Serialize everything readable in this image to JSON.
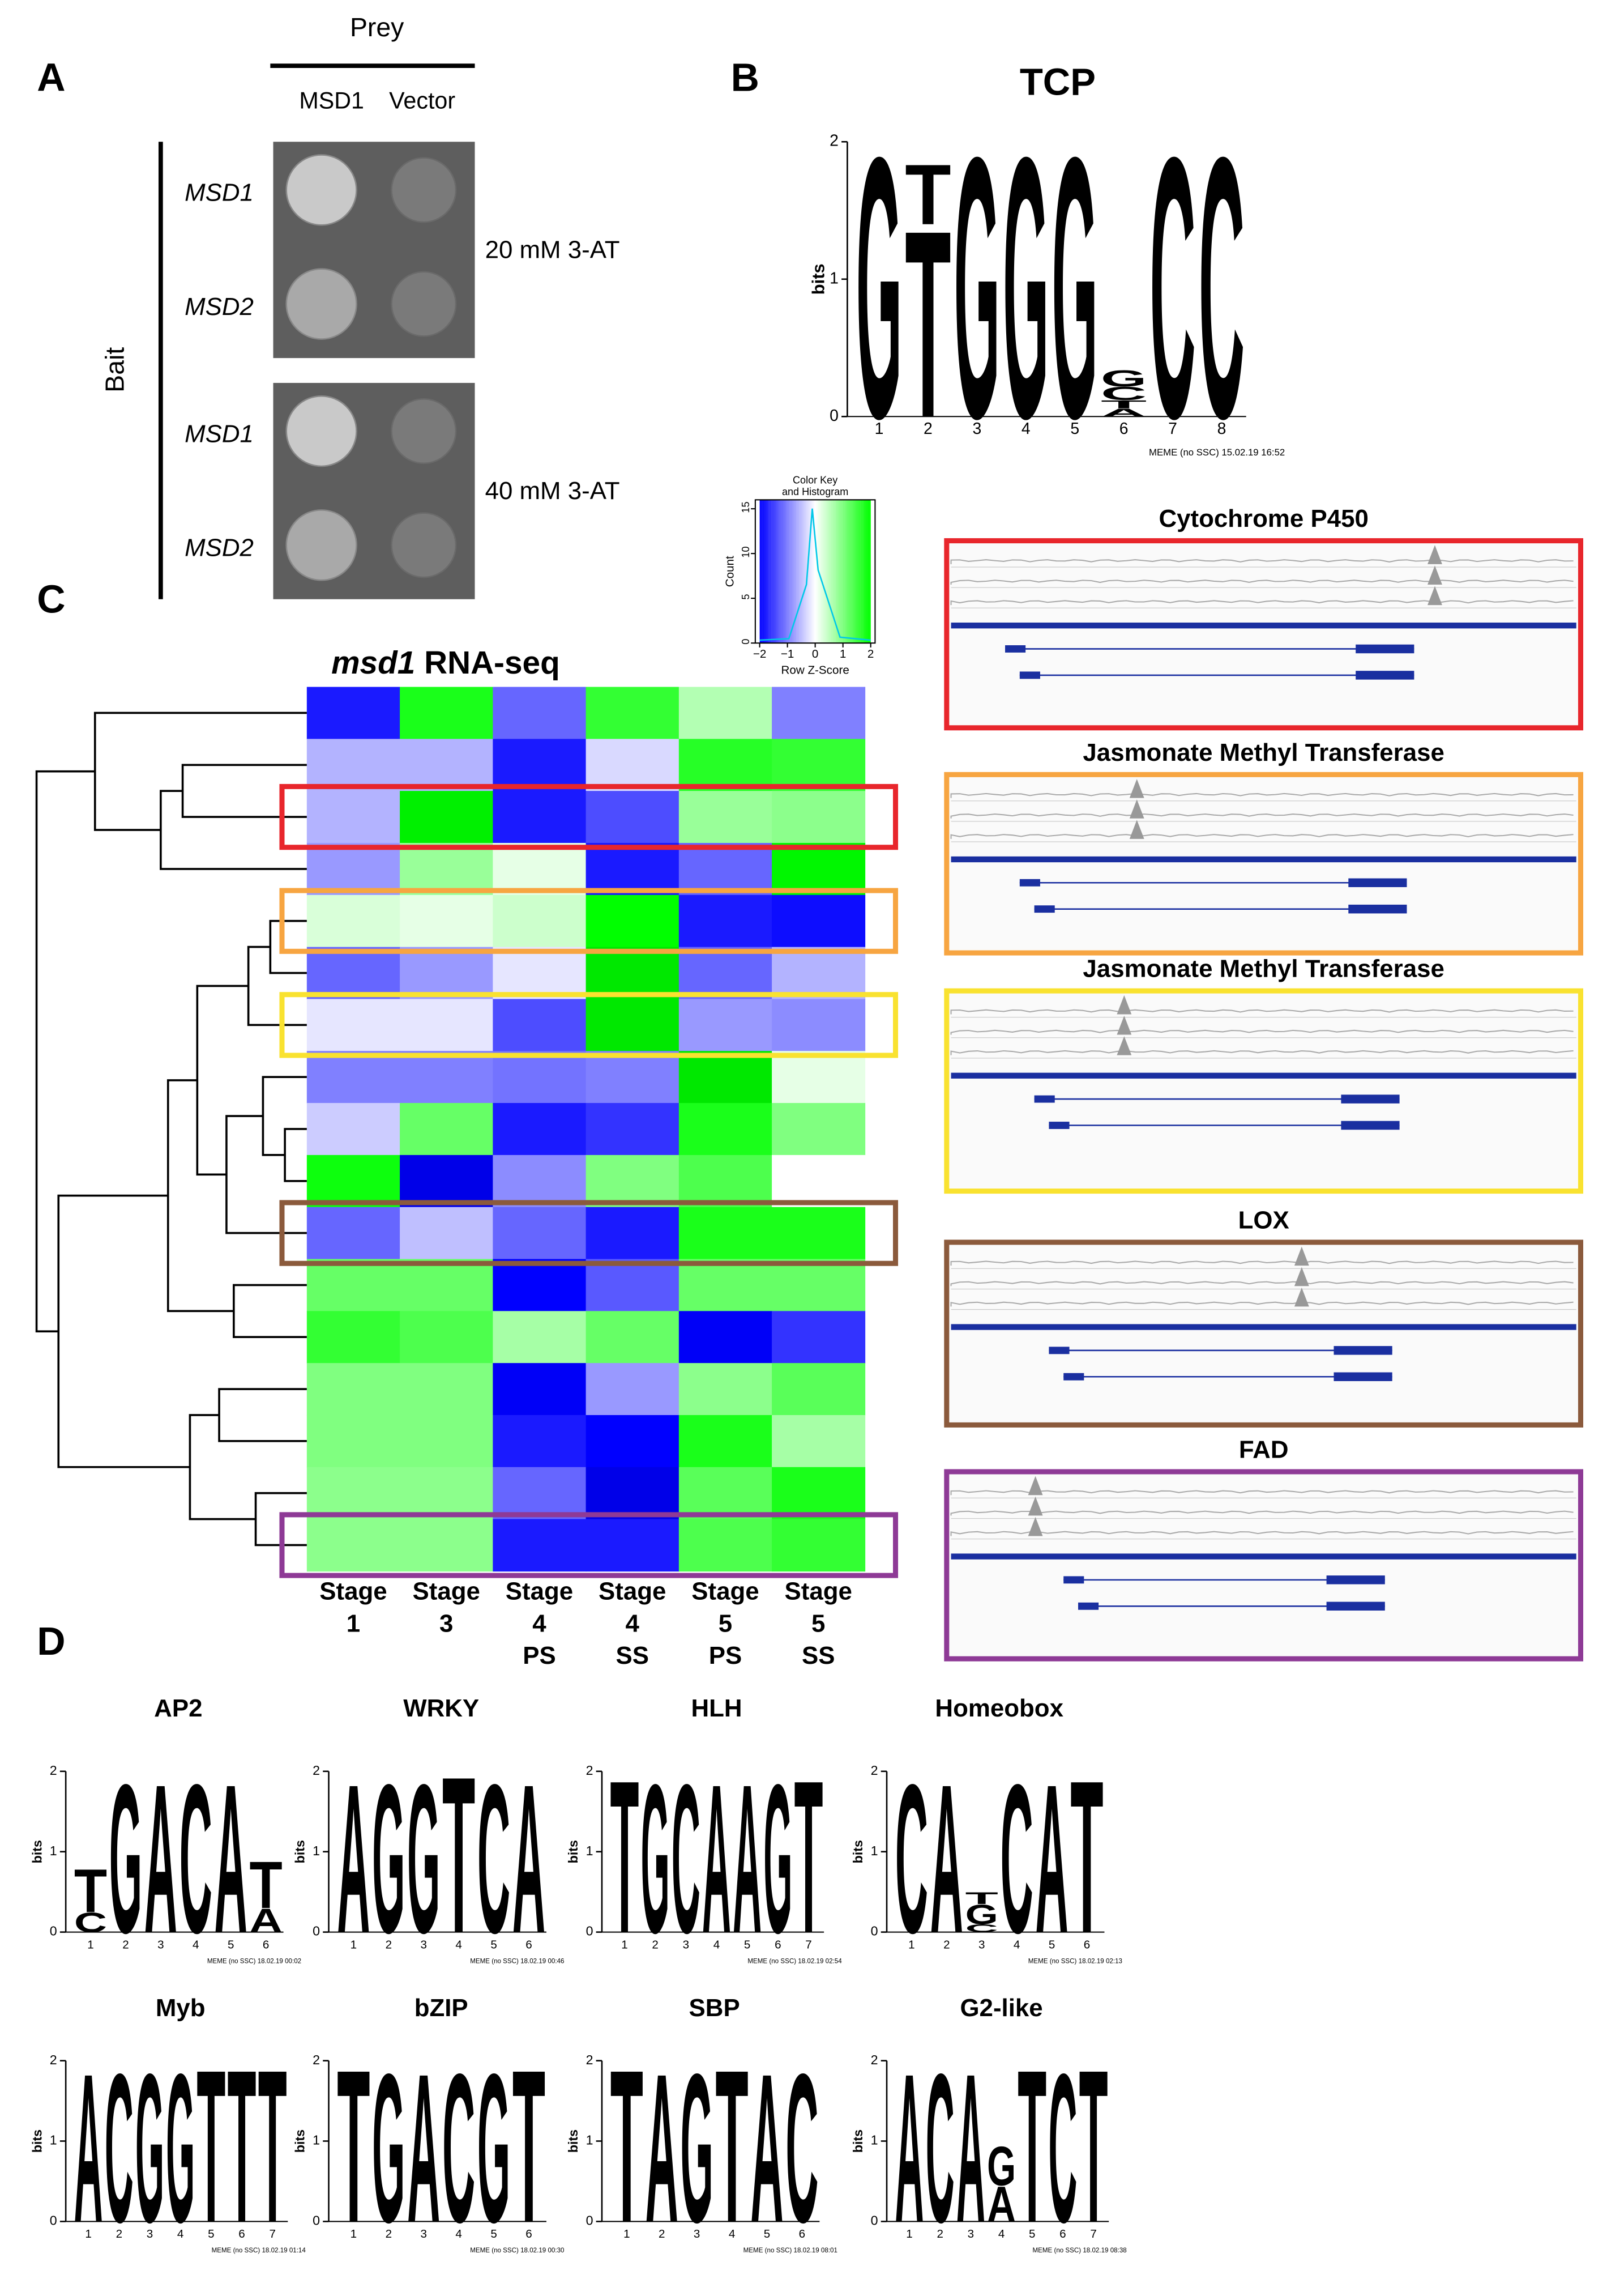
{
  "panel_labels": [
    "A",
    "B",
    "C",
    "D"
  ],
  "panel_a": {
    "prey_title": "Prey",
    "prey": [
      "MSD1",
      "Vector"
    ],
    "bait_title": "Bait",
    "plates": [
      {
        "condition": "20 mM 3-AT",
        "baits": [
          "MSD1",
          "MSD2"
        ]
      },
      {
        "condition": "40 mM 3-AT",
        "baits": [
          "MSD1",
          "MSD2"
        ]
      }
    ]
  },
  "letter_colors": {
    "A": "#d40000",
    "C": "#0000c0",
    "G": "#ffb000",
    "T": "#008000"
  },
  "logo_axis": {
    "label": "bits",
    "ylim": [
      0,
      2
    ],
    "yticks": [
      0,
      1,
      2
    ]
  },
  "logos": [
    {
      "title": "TCP",
      "footer": "MEME (no SSC) 15.02.19 16:52",
      "xticks": [
        1,
        2,
        3,
        4,
        5,
        6,
        7,
        8
      ],
      "stacks": [
        [
          {
            "letter": "G",
            "bits": 1.95
          }
        ],
        [
          {
            "letter": "T",
            "bits": 1.4
          },
          {
            "letter": "T",
            "bits": 0.45
          }
        ],
        [
          {
            "letter": "G",
            "bits": 1.95
          }
        ],
        [
          {
            "letter": "G",
            "bits": 1.95
          }
        ],
        [
          {
            "letter": "G",
            "bits": 1.95
          }
        ],
        [
          {
            "letter": "A",
            "bits": 0.06
          },
          {
            "letter": "T",
            "bits": 0.06
          },
          {
            "letter": "C",
            "bits": 0.1
          },
          {
            "letter": "G",
            "bits": 0.12
          }
        ],
        [
          {
            "letter": "C",
            "bits": 1.95
          }
        ],
        [
          {
            "letter": "C",
            "bits": 1.95
          }
        ]
      ]
    },
    {
      "title": "AP2",
      "footer": "MEME (no SSC) 18.02.19 00:02",
      "xticks": [
        1,
        2,
        3,
        4,
        5,
        6
      ],
      "stacks": [
        [
          {
            "letter": "C",
            "bits": 0.25
          },
          {
            "letter": "T",
            "bits": 0.55
          }
        ],
        [
          {
            "letter": "G",
            "bits": 1.9
          }
        ],
        [
          {
            "letter": "A",
            "bits": 1.9
          }
        ],
        [
          {
            "letter": "C",
            "bits": 1.9
          }
        ],
        [
          {
            "letter": "A",
            "bits": 1.9
          }
        ],
        [
          {
            "letter": "A",
            "bits": 0.3
          },
          {
            "letter": "T",
            "bits": 0.6
          }
        ]
      ]
    },
    {
      "title": "WRKY",
      "footer": "MEME (no SSC) 18.02.19 00:46",
      "xticks": [
        1,
        2,
        3,
        4,
        5,
        6
      ],
      "stacks": [
        [
          {
            "letter": "A",
            "bits": 1.9
          }
        ],
        [
          {
            "letter": "G",
            "bits": 1.9
          }
        ],
        [
          {
            "letter": "G",
            "bits": 1.9
          }
        ],
        [
          {
            "letter": "T",
            "bits": 2
          }
        ],
        [
          {
            "letter": "C",
            "bits": 1.9
          }
        ],
        [
          {
            "letter": "A",
            "bits": 1.9
          }
        ]
      ]
    },
    {
      "title": "HLH",
      "footer": "MEME (no SSC) 18.02.19 02:54",
      "xticks": [
        1,
        2,
        3,
        4,
        5,
        6,
        7
      ],
      "stacks": [
        [
          {
            "letter": "T",
            "bits": 1.95
          }
        ],
        [
          {
            "letter": "G",
            "bits": 1.9
          }
        ],
        [
          {
            "letter": "C",
            "bits": 1.9
          }
        ],
        [
          {
            "letter": "A",
            "bits": 1.9
          }
        ],
        [
          {
            "letter": "A",
            "bits": 1.9
          }
        ],
        [
          {
            "letter": "G",
            "bits": 1.9
          }
        ],
        [
          {
            "letter": "T",
            "bits": 1.95
          }
        ]
      ]
    },
    {
      "title": "Homeobox",
      "footer": "MEME (no SSC) 18.02.19 02:13",
      "xticks": [
        1,
        2,
        3,
        4,
        5,
        6
      ],
      "stacks": [
        [
          {
            "letter": "C",
            "bits": 1.9
          }
        ],
        [
          {
            "letter": "A",
            "bits": 1.9
          }
        ],
        [
          {
            "letter": "C",
            "bits": 0.1
          },
          {
            "letter": "G",
            "bits": 0.25
          },
          {
            "letter": "T",
            "bits": 0.15
          }
        ],
        [
          {
            "letter": "C",
            "bits": 1.9
          }
        ],
        [
          {
            "letter": "A",
            "bits": 1.9
          }
        ],
        [
          {
            "letter": "T",
            "bits": 1.95
          }
        ]
      ]
    },
    {
      "title": "Myb",
      "footer": "MEME (no SSC) 18.02.19 01:14",
      "xticks": [
        1,
        2,
        3,
        4,
        5,
        6,
        7
      ],
      "stacks": [
        [
          {
            "letter": "A",
            "bits": 1.9
          }
        ],
        [
          {
            "letter": "C",
            "bits": 1.9
          }
        ],
        [
          {
            "letter": "G",
            "bits": 1.9
          }
        ],
        [
          {
            "letter": "G",
            "bits": 1.9
          }
        ],
        [
          {
            "letter": "T",
            "bits": 1.95
          }
        ],
        [
          {
            "letter": "T",
            "bits": 1.95
          }
        ],
        [
          {
            "letter": "T",
            "bits": 1.95
          }
        ]
      ]
    },
    {
      "title": "bZIP",
      "footer": "MEME (no SSC) 18.02.19 00:30",
      "xticks": [
        1,
        2,
        3,
        4,
        5,
        6
      ],
      "stacks": [
        [
          {
            "letter": "T",
            "bits": 1.95
          }
        ],
        [
          {
            "letter": "G",
            "bits": 1.9
          }
        ],
        [
          {
            "letter": "A",
            "bits": 1.9
          }
        ],
        [
          {
            "letter": "C",
            "bits": 1.9
          }
        ],
        [
          {
            "letter": "G",
            "bits": 1.9
          }
        ],
        [
          {
            "letter": "T",
            "bits": 1.95
          }
        ]
      ]
    },
    {
      "title": "SBP",
      "footer": "MEME (no SSC) 18.02.19 08:01",
      "xticks": [
        1,
        2,
        3,
        4,
        5,
        6
      ],
      "stacks": [
        [
          {
            "letter": "T",
            "bits": 1.95
          }
        ],
        [
          {
            "letter": "A",
            "bits": 1.9
          }
        ],
        [
          {
            "letter": "G",
            "bits": 1.9
          }
        ],
        [
          {
            "letter": "T",
            "bits": 1.95
          }
        ],
        [
          {
            "letter": "A",
            "bits": 1.9
          }
        ],
        [
          {
            "letter": "C",
            "bits": 1.9
          }
        ]
      ]
    },
    {
      "title": "G2-like",
      "footer": "MEME (no SSC) 18.02.19 08:38",
      "xticks": [
        1,
        2,
        3,
        4,
        5,
        6,
        7
      ],
      "stacks": [
        [
          {
            "letter": "A",
            "bits": 1.9
          }
        ],
        [
          {
            "letter": "C",
            "bits": 1.9
          }
        ],
        [
          {
            "letter": "A",
            "bits": 1.9
          }
        ],
        [
          {
            "letter": "A",
            "bits": 0.45
          },
          {
            "letter": "G",
            "bits": 0.5
          }
        ],
        [
          {
            "letter": "T",
            "bits": 1.95
          }
        ],
        [
          {
            "letter": "C",
            "bits": 1.9
          }
        ],
        [
          {
            "letter": "T",
            "bits": 1.95
          }
        ]
      ]
    }
  ],
  "color_key": {
    "title": [
      "Color Key",
      "and Histogram"
    ],
    "ylabel": "Count",
    "xlabel": "Row Z-Score",
    "xlim": [
      -2,
      2
    ],
    "xticks": [
      {
        "value": -2,
        "label": "−2"
      },
      {
        "value": -1,
        "label": "−1"
      },
      0,
      1,
      2
    ],
    "ylim": [
      0,
      16
    ],
    "yticks": [
      0,
      5,
      10,
      15
    ],
    "low": "#0000ff",
    "mid": "#ffffff",
    "high": "#00ff00"
  },
  "heatmap": {
    "title_italic": "msd1",
    "title": " RNA-seq",
    "columns": [
      [
        "Stage",
        "1"
      ],
      [
        "Stage",
        "3"
      ],
      [
        "Stage",
        "4",
        "PS"
      ],
      [
        "Stage",
        "4",
        "SS"
      ],
      [
        "Stage",
        "5",
        "PS"
      ],
      [
        "Stage",
        "5",
        "SS"
      ]
    ],
    "values": [
      [
        -1.8,
        1.8,
        -1.2,
        1.6,
        0.6,
        -1.0
      ],
      [
        -0.6,
        -0.6,
        -1.8,
        -0.3,
        1.7,
        1.6
      ],
      [
        -0.6,
        2.2,
        -1.8,
        -1.4,
        0.8,
        0.9
      ],
      [
        -0.8,
        0.8,
        0.2,
        -1.8,
        -1.2,
        2.1
      ],
      [
        0.3,
        0.2,
        0.4,
        2.0,
        -1.8,
        -1.9
      ],
      [
        -1.2,
        -0.8,
        -0.2,
        2.3,
        -1.2,
        -0.6
      ],
      [
        -0.2,
        -0.2,
        -1.4,
        2.3,
        -0.8,
        -0.9
      ],
      [
        -1.0,
        -1.0,
        -1.1,
        -1.0,
        2.3,
        0.2
      ],
      [
        -0.4,
        1.2,
        -1.8,
        -1.6,
        1.8,
        1.0
      ],
      [
        1.9,
        -2.3,
        -0.9,
        1.0,
        1.4,
        0.0
      ],
      [
        -1.2,
        -0.5,
        -1.2,
        -1.8,
        1.8,
        1.8
      ],
      [
        1.2,
        1.2,
        -2.0,
        -1.3,
        1.2,
        1.2
      ],
      [
        1.6,
        1.4,
        0.7,
        1.2,
        -2.1,
        -1.6
      ],
      [
        1.0,
        1.0,
        -2.1,
        -0.8,
        0.9,
        1.3
      ],
      [
        1.0,
        1.0,
        -1.8,
        -2.0,
        1.8,
        0.7
      ],
      [
        0.9,
        0.9,
        -1.2,
        -2.3,
        1.3,
        1.8
      ],
      [
        0.9,
        0.9,
        -1.8,
        -1.8,
        1.4,
        1.6
      ]
    ]
  },
  "tracks": [
    {
      "title": "Cytochrome P450",
      "color": "#e8262c",
      "row": 2
    },
    {
      "title": "Jasmonate Methyl Transferase",
      "color": "#f7a541",
      "row": 4
    },
    {
      "title": "Jasmonate Methyl Transferase",
      "color": "#f9e230",
      "row": 6
    },
    {
      "title": "LOX",
      "color": "#8b5a3c",
      "row": 10
    },
    {
      "title": "FAD",
      "color": "#8e3a96",
      "row": 16
    }
  ]
}
